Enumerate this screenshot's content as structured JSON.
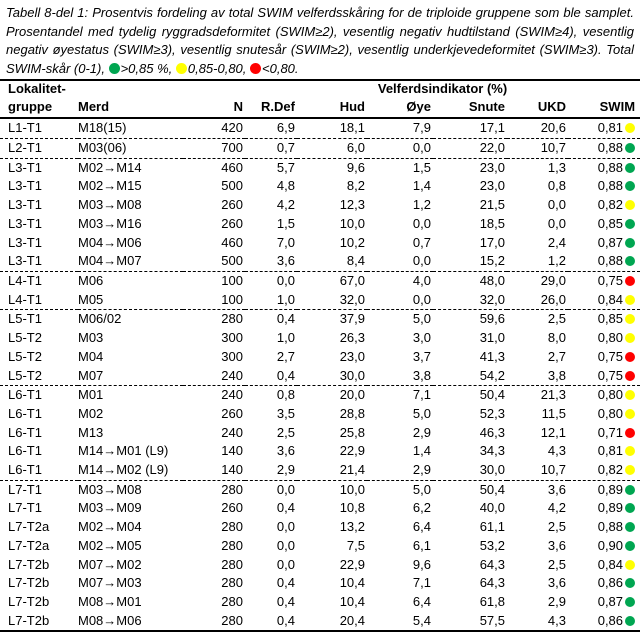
{
  "colors": {
    "green": "#00A651",
    "yellow": "#FFFF00",
    "red": "#FF0000"
  },
  "caption": {
    "text": "Tabell 8-del 1: Prosentvis fordeling av total SWIM velferdsskåring for de triploide gruppene som ble samplet. Prosentandel med tydelig ryggradsdeformitet (SWIM≥2), vesentlig negativ hudtilstand (SWIM≥4), vesentlig negativ øyestatus (SWIM≥3), vesentlig snutesår (SWIM≥2), vesentlig underkjevedeformitet (SWIM≥3). Total SWIM-skår (0-1), ",
    "legend": [
      {
        "color": "green",
        "label": ">0,85 %, "
      },
      {
        "color": "yellow",
        "label": "0,85-0,80, "
      },
      {
        "color": "red",
        "label": "<0,80."
      }
    ]
  },
  "table": {
    "header": {
      "group_line1": "Lokalitet-",
      "indicator_group": "Velferdsindikator (%)",
      "cols": [
        "gruppe",
        "Merd",
        "N",
        "R.Def",
        "Hud",
        "Øye",
        "Snute",
        "UKD",
        "SWIM"
      ]
    },
    "rows": [
      {
        "group": "L1-T1",
        "merd": "M18(15)",
        "n": "420",
        "rdef": "6,9",
        "hud": "18,1",
        "oye": "7,9",
        "snute": "17,1",
        "ukd": "20,6",
        "swim": "0,81",
        "dot": "yellow",
        "sep": true
      },
      {
        "group": "L2-T1",
        "merd": "M03(06)",
        "n": "700",
        "rdef": "0,7",
        "hud": "6,0",
        "oye": "0,0",
        "snute": "22,0",
        "ukd": "10,7",
        "swim": "0,88",
        "dot": "green",
        "sep": true
      },
      {
        "group": "L3-T1",
        "merd": "M02→M14",
        "n": "460",
        "rdef": "5,7",
        "hud": "9,6",
        "oye": "1,5",
        "snute": "23,0",
        "ukd": "1,3",
        "swim": "0,88",
        "dot": "green",
        "sep": false
      },
      {
        "group": "L3-T1",
        "merd": "M02→M15",
        "n": "500",
        "rdef": "4,8",
        "hud": "8,2",
        "oye": "1,4",
        "snute": "23,0",
        "ukd": "0,8",
        "swim": "0,88",
        "dot": "green",
        "sep": false
      },
      {
        "group": "L3-T1",
        "merd": "M03→M08",
        "n": "260",
        "rdef": "4,2",
        "hud": "12,3",
        "oye": "1,2",
        "snute": "21,5",
        "ukd": "0,0",
        "swim": "0,82",
        "dot": "yellow",
        "sep": false
      },
      {
        "group": "L3-T1",
        "merd": "M03→M16",
        "n": "260",
        "rdef": "1,5",
        "hud": "10,0",
        "oye": "0,0",
        "snute": "18,5",
        "ukd": "0,0",
        "swim": "0,85",
        "dot": "green",
        "sep": false
      },
      {
        "group": "L3-T1",
        "merd": "M04→M06",
        "n": "460",
        "rdef": "7,0",
        "hud": "10,2",
        "oye": "0,7",
        "snute": "17,0",
        "ukd": "2,4",
        "swim": "0,87",
        "dot": "green",
        "sep": false
      },
      {
        "group": "L3-T1",
        "merd": "M04→M07",
        "n": "500",
        "rdef": "3,6",
        "hud": "8,4",
        "oye": "0,0",
        "snute": "15,2",
        "ukd": "1,2",
        "swim": "0,88",
        "dot": "green",
        "sep": true
      },
      {
        "group": "L4-T1",
        "merd": "M06",
        "n": "100",
        "rdef": "0,0",
        "hud": "67,0",
        "oye": "4,0",
        "snute": "48,0",
        "ukd": "29,0",
        "swim": "0,75",
        "dot": "red",
        "sep": false
      },
      {
        "group": "L4-T1",
        "merd": "M05",
        "n": "100",
        "rdef": "1,0",
        "hud": "32,0",
        "oye": "0,0",
        "snute": "32,0",
        "ukd": "26,0",
        "swim": "0,84",
        "dot": "yellow",
        "sep": true
      },
      {
        "group": "L5-T1",
        "merd": "M06/02",
        "n": "280",
        "rdef": "0,4",
        "hud": "37,9",
        "oye": "5,0",
        "snute": "59,6",
        "ukd": "2,5",
        "swim": "0,85",
        "dot": "yellow",
        "sep": false
      },
      {
        "group": "L5-T2",
        "merd": "M03",
        "n": "300",
        "rdef": "1,0",
        "hud": "26,3",
        "oye": "3,0",
        "snute": "31,0",
        "ukd": "8,0",
        "swim": "0,80",
        "dot": "yellow",
        "sep": false
      },
      {
        "group": "L5-T2",
        "merd": "M04",
        "n": "300",
        "rdef": "2,7",
        "hud": "23,0",
        "oye": "3,7",
        "snute": "41,3",
        "ukd": "2,7",
        "swim": "0,75",
        "dot": "red",
        "sep": false
      },
      {
        "group": "L5-T2",
        "merd": "M07",
        "n": "240",
        "rdef": "0,4",
        "hud": "30,0",
        "oye": "3,8",
        "snute": "54,2",
        "ukd": "3,8",
        "swim": "0,75",
        "dot": "red",
        "sep": true
      },
      {
        "group": "L6-T1",
        "merd": "M01",
        "n": "240",
        "rdef": "0,8",
        "hud": "20,0",
        "oye": "7,1",
        "snute": "50,4",
        "ukd": "21,3",
        "swim": "0,80",
        "dot": "yellow",
        "sep": false
      },
      {
        "group": "L6-T1",
        "merd": "M02",
        "n": "260",
        "rdef": "3,5",
        "hud": "28,8",
        "oye": "5,0",
        "snute": "52,3",
        "ukd": "11,5",
        "swim": "0,80",
        "dot": "yellow",
        "sep": false
      },
      {
        "group": "L6-T1",
        "merd": "M13",
        "n": "240",
        "rdef": "2,5",
        "hud": "25,8",
        "oye": "2,9",
        "snute": "46,3",
        "ukd": "12,1",
        "swim": "0,71",
        "dot": "red",
        "sep": false
      },
      {
        "group": "L6-T1",
        "merd": "M14→M01 (L9)",
        "n": "140",
        "rdef": "3,6",
        "hud": "22,9",
        "oye": "1,4",
        "snute": "34,3",
        "ukd": "4,3",
        "swim": "0,81",
        "dot": "yellow",
        "sep": false
      },
      {
        "group": "L6-T1",
        "merd": "M14→M02 (L9)",
        "n": "140",
        "rdef": "2,9",
        "hud": "21,4",
        "oye": "2,9",
        "snute": "30,0",
        "ukd": "10,7",
        "swim": "0,82",
        "dot": "yellow",
        "sep": true
      },
      {
        "group": "L7-T1",
        "merd": "M03→M08",
        "n": "280",
        "rdef": "0,0",
        "hud": "10,0",
        "oye": "5,0",
        "snute": "50,4",
        "ukd": "3,6",
        "swim": "0,89",
        "dot": "green",
        "sep": false
      },
      {
        "group": "L7-T1",
        "merd": "M03→M09",
        "n": "260",
        "rdef": "0,4",
        "hud": "10,8",
        "oye": "6,2",
        "snute": "40,0",
        "ukd": "4,2",
        "swim": "0,89",
        "dot": "green",
        "sep": false
      },
      {
        "group": "L7-T2a",
        "merd": "M02→M04",
        "n": "280",
        "rdef": "0,0",
        "hud": "13,2",
        "oye": "6,4",
        "snute": "61,1",
        "ukd": "2,5",
        "swim": "0,88",
        "dot": "green",
        "sep": false
      },
      {
        "group": "L7-T2a",
        "merd": "M02→M05",
        "n": "280",
        "rdef": "0,0",
        "hud": "7,5",
        "oye": "6,1",
        "snute": "53,2",
        "ukd": "3,6",
        "swim": "0,90",
        "dot": "green",
        "sep": false
      },
      {
        "group": "L7-T2b",
        "merd": "M07→M02",
        "n": "280",
        "rdef": "0,0",
        "hud": "22,9",
        "oye": "9,6",
        "snute": "64,3",
        "ukd": "2,5",
        "swim": "0,84",
        "dot": "yellow",
        "sep": false
      },
      {
        "group": "L7-T2b",
        "merd": "M07→M03",
        "n": "280",
        "rdef": "0,4",
        "hud": "10,4",
        "oye": "7,1",
        "snute": "64,3",
        "ukd": "3,6",
        "swim": "0,86",
        "dot": "green",
        "sep": false
      },
      {
        "group": "L7-T2b",
        "merd": "M08→M01",
        "n": "280",
        "rdef": "0,4",
        "hud": "10,4",
        "oye": "6,4",
        "snute": "61,8",
        "ukd": "2,9",
        "swim": "0,87",
        "dot": "green",
        "sep": false
      },
      {
        "group": "L7-T2b",
        "merd": "M08→M06",
        "n": "280",
        "rdef": "0,4",
        "hud": "20,4",
        "oye": "5,4",
        "snute": "57,5",
        "ukd": "4,3",
        "swim": "0,86",
        "dot": "green",
        "sep": false
      }
    ]
  }
}
